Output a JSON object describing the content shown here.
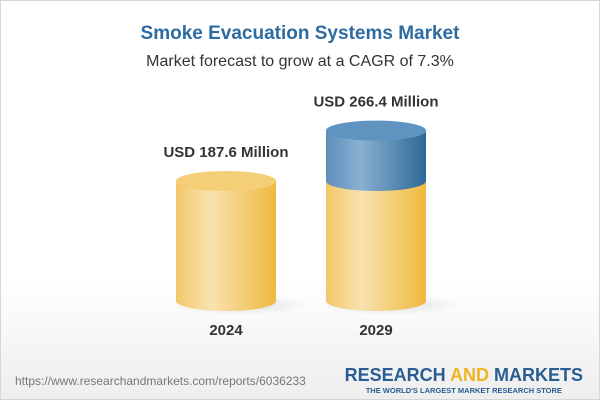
{
  "chart_data": {
    "type": "bar",
    "title": "Smoke Evacuation Systems Market",
    "subtitle": "Market forecast to grow at a CAGR of 7.3%",
    "categories": [
      "2024",
      "2029"
    ],
    "values": [
      187.6,
      266.4
    ],
    "data_labels": [
      "USD 187.6 Million",
      "USD 266.4 Million"
    ],
    "unit": "USD Million",
    "style": "3d-cylinder",
    "colors": {
      "base": "#f2c25a",
      "growth": "#4a80b0",
      "title": "#2d6ca2"
    }
  },
  "footer": {
    "url": "https://www.researchandmarkets.com/reports/6036233",
    "logo_part1": "RESEARCH ",
    "logo_part2": "AND",
    "logo_part3": " MARKETS",
    "tagline": "THE WORLD'S LARGEST MARKET RESEARCH STORE"
  }
}
